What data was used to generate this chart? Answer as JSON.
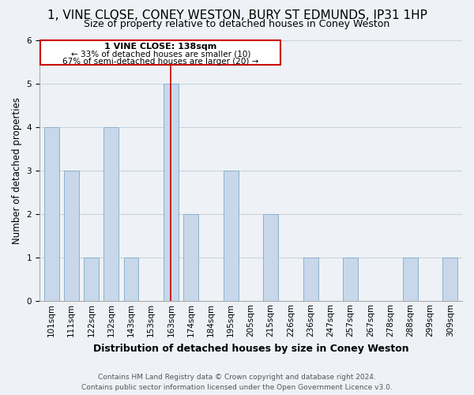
{
  "title": "1, VINE CLOSE, CONEY WESTON, BURY ST EDMUNDS, IP31 1HP",
  "subtitle": "Size of property relative to detached houses in Coney Weston",
  "xlabel": "Distribution of detached houses by size in Coney Weston",
  "ylabel": "Number of detached properties",
  "categories": [
    "101sqm",
    "111sqm",
    "122sqm",
    "132sqm",
    "143sqm",
    "153sqm",
    "163sqm",
    "174sqm",
    "184sqm",
    "195sqm",
    "205sqm",
    "215sqm",
    "226sqm",
    "236sqm",
    "247sqm",
    "257sqm",
    "267sqm",
    "278sqm",
    "288sqm",
    "299sqm",
    "309sqm"
  ],
  "values": [
    4,
    3,
    1,
    4,
    1,
    0,
    5,
    2,
    0,
    3,
    0,
    2,
    0,
    1,
    0,
    1,
    0,
    0,
    1,
    0,
    1
  ],
  "bar_color": "#c8d8ea",
  "bar_edge_color": "#8ab0cc",
  "highlight_bar_index": 6,
  "highlight_line_color": "#cc0000",
  "ylim": [
    0,
    6
  ],
  "yticks": [
    0,
    1,
    2,
    3,
    4,
    5,
    6
  ],
  "annotation_title": "1 VINE CLOSE: 138sqm",
  "annotation_line1": "← 33% of detached houses are smaller (10)",
  "annotation_line2": "67% of semi-detached houses are larger (20) →",
  "annotation_box_facecolor": "#ffffff",
  "annotation_box_edgecolor": "#cc0000",
  "footer_line1": "Contains HM Land Registry data © Crown copyright and database right 2024.",
  "footer_line2": "Contains public sector information licensed under the Open Government Licence v3.0.",
  "grid_color": "#c8d4de",
  "background_color": "#eef2f6",
  "title_fontsize": 11,
  "subtitle_fontsize": 9,
  "xlabel_fontsize": 9,
  "ylabel_fontsize": 8.5,
  "tick_fontsize": 7.5,
  "footer_fontsize": 6.5
}
